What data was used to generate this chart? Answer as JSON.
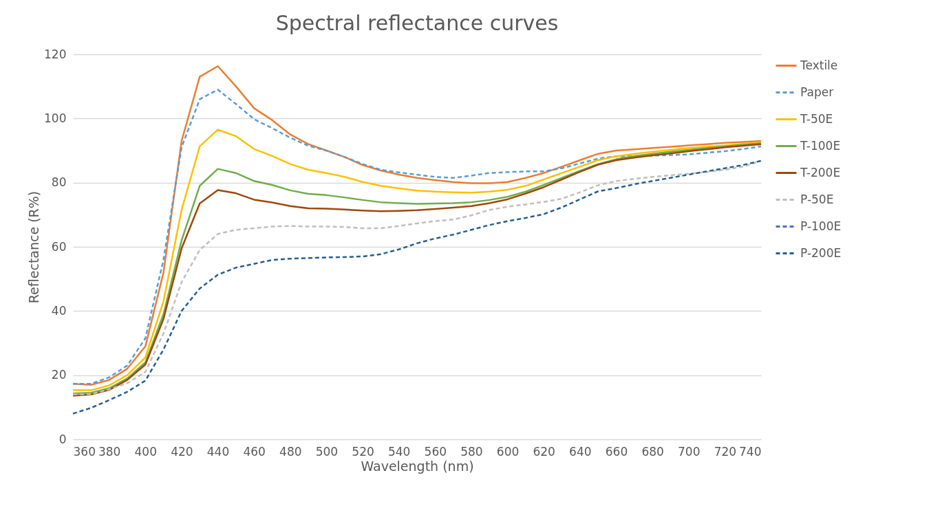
{
  "chart_data": {
    "type": "line",
    "title": "Spectral reflectance curves",
    "xlabel": "Wavelength (nm)",
    "ylabel": "Reflectance (R%)",
    "x": [
      360,
      370,
      380,
      390,
      400,
      410,
      420,
      430,
      440,
      450,
      460,
      470,
      480,
      490,
      500,
      510,
      520,
      530,
      540,
      550,
      560,
      570,
      580,
      590,
      600,
      610,
      620,
      630,
      640,
      650,
      660,
      670,
      680,
      690,
      700,
      710,
      720,
      730,
      740
    ],
    "xlim": [
      360,
      740
    ],
    "xticks": [
      360,
      380,
      400,
      420,
      440,
      460,
      480,
      500,
      520,
      540,
      560,
      580,
      600,
      620,
      640,
      660,
      680,
      700,
      720,
      740
    ],
    "ylim": [
      0,
      120
    ],
    "yticks": [
      0,
      20,
      40,
      60,
      80,
      100,
      120
    ],
    "grid": "y",
    "legend": "right",
    "marker": "none",
    "series": [
      {
        "name": "Textile",
        "color": "#ed7d31",
        "line_style": "solid",
        "values": [
          17.3,
          17,
          18.5,
          22,
          29,
          52,
          93,
          113,
          116.3,
          110,
          103.2,
          99.5,
          95,
          92,
          90,
          88,
          85.5,
          83.8,
          82.5,
          81.5,
          80.8,
          80.2,
          79.8,
          79.8,
          80.2,
          81.5,
          83,
          85,
          87,
          89,
          90,
          90.4,
          90.8,
          91.2,
          91.6,
          92,
          92.4,
          92.7,
          93
        ]
      },
      {
        "name": "Paper",
        "color": "#5b9bd5",
        "line_style": "dashed",
        "values": [
          17.3,
          17.3,
          19.3,
          23,
          31.5,
          56,
          91,
          106,
          109,
          104.5,
          99.8,
          97,
          94,
          91.5,
          90,
          88,
          85.8,
          84,
          83.2,
          82.5,
          81.8,
          81.5,
          82.2,
          83,
          83.3,
          83.5,
          83.5,
          84.5,
          86,
          87.5,
          88.2,
          88.2,
          88.4,
          88.6,
          88.8,
          89.3,
          89.8,
          90.5,
          91.3
        ]
      },
      {
        "name": "T-50E",
        "color": "#ffc000",
        "line_style": "solid",
        "values": [
          15.3,
          15.3,
          16.8,
          20,
          25.5,
          43,
          71.5,
          91.3,
          96.5,
          94.5,
          90.5,
          88.3,
          85.8,
          84,
          83,
          81.8,
          80.2,
          79,
          78.2,
          77.5,
          77.2,
          77,
          76.9,
          77.2,
          77.8,
          79,
          81,
          83,
          85,
          87,
          88.2,
          89,
          89.6,
          90.2,
          90.8,
          91.2,
          91.6,
          92.1,
          92.6
        ]
      },
      {
        "name": "T-100E",
        "color": "#70ad47",
        "line_style": "solid",
        "values": [
          14.3,
          14.5,
          15.9,
          19,
          24,
          39,
          62,
          79,
          84.3,
          83,
          80.5,
          79.3,
          77.6,
          76.5,
          76.1,
          75.4,
          74.6,
          73.9,
          73.6,
          73.4,
          73.5,
          73.6,
          73.9,
          74.6,
          75.6,
          77.2,
          79.3,
          81.5,
          83.7,
          85.8,
          87.3,
          88.3,
          89,
          89.6,
          90.2,
          90.8,
          91.3,
          91.8,
          92.3
        ]
      },
      {
        "name": "T-200E",
        "color": "#9e480e",
        "line_style": "solid",
        "values": [
          13.6,
          14,
          15.4,
          18.5,
          23.3,
          37.5,
          59.5,
          73.5,
          77.7,
          76.7,
          74.7,
          73.8,
          72.7,
          72,
          71.9,
          71.6,
          71.3,
          71.1,
          71.2,
          71.4,
          71.8,
          72.2,
          72.7,
          73.6,
          74.8,
          76.6,
          78.6,
          81,
          83.4,
          85.6,
          87,
          87.8,
          88.5,
          89.1,
          89.8,
          90.4,
          91,
          91.5,
          92
        ]
      },
      {
        "name": "P-50E",
        "color": "#bfbfbf",
        "line_style": "dashed",
        "values": [
          14,
          14.1,
          15.6,
          17.5,
          21,
          33,
          49,
          59,
          64,
          65.3,
          65.8,
          66.3,
          66.5,
          66.3,
          66.3,
          66.2,
          65.8,
          65.8,
          66.5,
          67.3,
          68,
          68.5,
          69.8,
          71.5,
          72.5,
          73.2,
          74,
          75,
          77,
          79.2,
          80.5,
          81.2,
          81.8,
          82.3,
          82.8,
          83.3,
          84,
          85,
          86.8
        ]
      },
      {
        "name": "P-100E",
        "color": "#4472c4",
        "line_style": "dashed",
        "values": [
          null,
          null,
          null,
          null,
          null,
          null,
          null,
          null,
          null,
          null,
          null,
          null,
          null,
          null,
          null,
          null,
          null,
          null,
          null,
          null,
          null,
          null,
          null,
          null,
          null,
          null,
          null,
          null,
          null,
          null,
          null,
          null,
          null,
          null,
          null,
          null,
          null,
          null,
          null
        ]
      },
      {
        "name": "P-200E",
        "color": "#255e91",
        "line_style": "dashed",
        "values": [
          8,
          9.8,
          12.2,
          14.8,
          18.3,
          28,
          40,
          47,
          51.3,
          53.5,
          54.7,
          55.9,
          56.3,
          56.5,
          56.7,
          56.8,
          57,
          57.7,
          59.2,
          61.1,
          62.6,
          63.8,
          65.3,
          66.8,
          68,
          69,
          70.2,
          72.3,
          74.8,
          77.3,
          78.3,
          79.5,
          80.5,
          81.5,
          82.5,
          83.5,
          84.5,
          85.5,
          86.8
        ]
      }
    ]
  }
}
